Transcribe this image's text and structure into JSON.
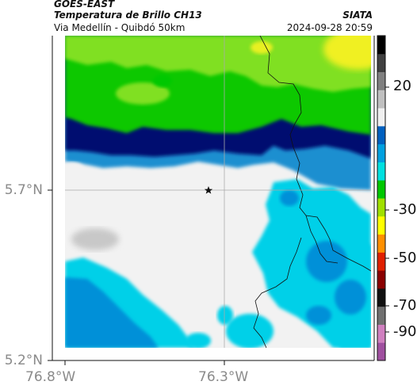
{
  "header": {
    "satellite": "GOES-EAST",
    "product": "Temperatura de Brillo CH13",
    "region": "Via Medellín - Quibdó 50km",
    "source": "SIATA",
    "datetime": "2024-09-28 20:59"
  },
  "axes": {
    "lat_labels": [
      "5.7°N",
      "5.2°N"
    ],
    "lon_labels": [
      "76.8°W",
      "76.3°W"
    ]
  },
  "colorbar": {
    "ticks": [
      "20",
      "-30",
      "-50",
      "-70",
      "-90"
    ],
    "colors": [
      "#a050a0",
      "#d080c0",
      "#707070",
      "#101010",
      "#8a0000",
      "#e02000",
      "#ff9000",
      "#ffff00",
      "#a0e000",
      "#00c800",
      "#00e0e0",
      "#00a0e0",
      "#0060c0",
      "#f0f0f0",
      "#c0c0c0",
      "#808080",
      "#404040",
      "#000000"
    ]
  },
  "map": {
    "marker_icon": "star-icon",
    "colors": {
      "cold_clouds_yellow": "#f0f020",
      "cold_clouds_lime": "#90e020",
      "cold_clouds_green": "#20d000",
      "band_light_blue": "#1090d0",
      "band_dark_blue": "#001070",
      "clear_sky": "#f2f2f2",
      "shallow_cyan": "#00d0e8",
      "shallow_blue": "#0090d8",
      "border_line": "#111111",
      "gridline": "#aaaaaa"
    }
  }
}
